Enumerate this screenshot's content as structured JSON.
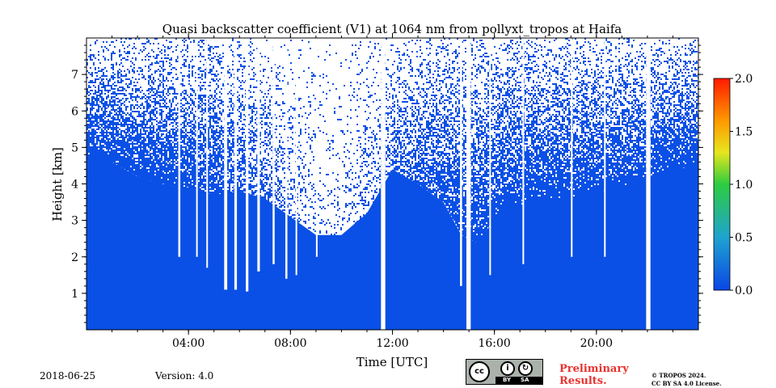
{
  "chart_data": {
    "type": "heatmap",
    "title": "Quasi backscatter coefficient (V1) at 1064 nm from pollyxt_tropos at Haifa",
    "xlabel": "Time [UTC]",
    "ylabel": "Height [km]",
    "x_range_hours": [
      0,
      24
    ],
    "ylim": [
      0,
      8
    ],
    "x_ticks": [
      {
        "value": 4,
        "label": "04:00"
      },
      {
        "value": 8,
        "label": "08:00"
      },
      {
        "value": 12,
        "label": "12:00"
      },
      {
        "value": 16,
        "label": "16:00"
      },
      {
        "value": 20,
        "label": "20:00"
      }
    ],
    "y_ticks": [
      {
        "value": 1,
        "label": "1"
      },
      {
        "value": 2,
        "label": "2"
      },
      {
        "value": 3,
        "label": "3"
      },
      {
        "value": 4,
        "label": "4"
      },
      {
        "value": 5,
        "label": "5"
      },
      {
        "value": 6,
        "label": "6"
      },
      {
        "value": 7,
        "label": "7"
      }
    ],
    "colorbar": {
      "range": [
        0.0,
        2.0
      ],
      "ticks": [
        {
          "value": 0.0,
          "label": "0.0"
        },
        {
          "value": 0.5,
          "label": "0.5"
        },
        {
          "value": 1.0,
          "label": "1.0"
        },
        {
          "value": 1.5,
          "label": "1.5"
        },
        {
          "value": 2.0,
          "label": "2.0"
        }
      ],
      "colors": [
        "#0a46e6",
        "#1fa3d0",
        "#2ecc40",
        "#e6e61e",
        "#ff9900",
        "#ff1a00"
      ]
    },
    "signal_color": "#0a50e6",
    "gaps_hours": [
      {
        "start": 11.55,
        "end": 11.72
      },
      {
        "start": 14.9,
        "end": 15.07
      },
      {
        "start": 21.95,
        "end": 22.12
      }
    ],
    "signal_top_km": [
      {
        "t": 0.0,
        "h": 4.7
      },
      {
        "t": 1.0,
        "h": 4.6
      },
      {
        "t": 2.0,
        "h": 4.2
      },
      {
        "t": 3.0,
        "h": 4.0
      },
      {
        "t": 4.0,
        "h": 3.9
      },
      {
        "t": 5.0,
        "h": 3.7
      },
      {
        "t": 6.0,
        "h": 3.8
      },
      {
        "t": 7.0,
        "h": 3.6
      },
      {
        "t": 8.0,
        "h": 3.1
      },
      {
        "t": 9.0,
        "h": 2.6
      },
      {
        "t": 10.0,
        "h": 2.6
      },
      {
        "t": 11.0,
        "h": 3.2
      },
      {
        "t": 11.5,
        "h": 3.8
      },
      {
        "t": 12.0,
        "h": 4.4
      },
      {
        "t": 13.0,
        "h": 4.0
      },
      {
        "t": 14.0,
        "h": 3.5
      },
      {
        "t": 14.7,
        "h": 2.6
      },
      {
        "t": 15.3,
        "h": 2.4
      },
      {
        "t": 16.0,
        "h": 3.0
      },
      {
        "t": 17.0,
        "h": 3.4
      },
      {
        "t": 18.0,
        "h": 3.6
      },
      {
        "t": 19.0,
        "h": 3.6
      },
      {
        "t": 20.0,
        "h": 3.7
      },
      {
        "t": 21.0,
        "h": 3.9
      },
      {
        "t": 22.0,
        "h": 4.1
      },
      {
        "t": 23.0,
        "h": 4.4
      },
      {
        "t": 24.0,
        "h": 4.5
      }
    ],
    "dropouts": [
      {
        "t": 3.6,
        "w": 0.08,
        "h": 2.0
      },
      {
        "t": 4.3,
        "w": 0.06,
        "h": 2.0
      },
      {
        "t": 4.7,
        "w": 0.06,
        "h": 1.7
      },
      {
        "t": 5.4,
        "w": 0.12,
        "h": 1.1
      },
      {
        "t": 5.8,
        "w": 0.1,
        "h": 1.1
      },
      {
        "t": 6.25,
        "w": 0.1,
        "h": 1.05
      },
      {
        "t": 6.7,
        "w": 0.1,
        "h": 1.6
      },
      {
        "t": 7.3,
        "w": 0.08,
        "h": 1.8
      },
      {
        "t": 7.8,
        "w": 0.08,
        "h": 1.4
      },
      {
        "t": 8.2,
        "w": 0.06,
        "h": 1.5
      },
      {
        "t": 9.0,
        "w": 0.06,
        "h": 2.0
      },
      {
        "t": 14.65,
        "w": 0.08,
        "h": 1.2
      },
      {
        "t": 15.8,
        "w": 0.06,
        "h": 1.5
      },
      {
        "t": 17.1,
        "w": 0.06,
        "h": 1.8
      },
      {
        "t": 19.0,
        "w": 0.06,
        "h": 2.0
      },
      {
        "t": 20.3,
        "w": 0.06,
        "h": 2.0
      }
    ]
  },
  "footer": {
    "date": "2018-06-25",
    "version": "Version: 4.0",
    "license_badge": {
      "cc": "cc",
      "by": "BY",
      "sa": "SA"
    },
    "preliminary": "Preliminary Results.",
    "copyright_line1": "© TROPOS 2024.",
    "copyright_line2": "CC BY SA 4.0 License."
  }
}
